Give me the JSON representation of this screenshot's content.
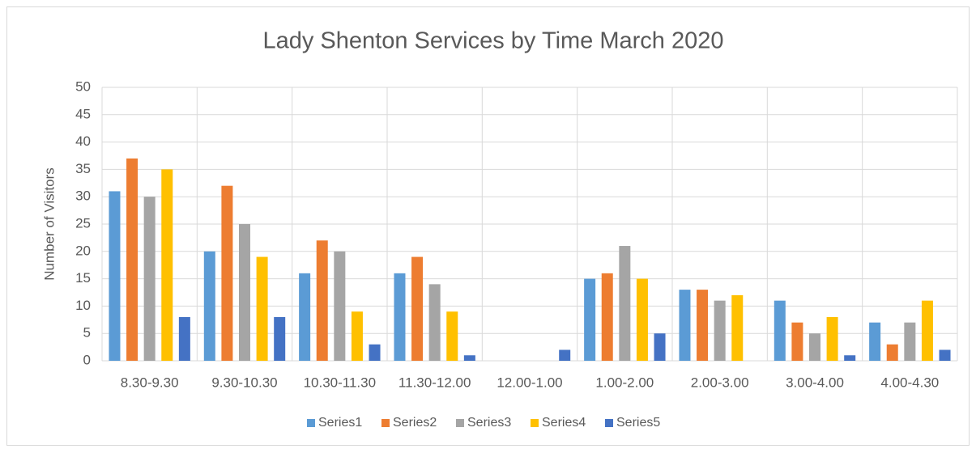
{
  "chart_data": {
    "type": "bar",
    "title": "Lady Shenton Services by Time March 2020",
    "y_label": "Number of Visitors",
    "categories": [
      "8.30-9.30",
      "9.30-10.30",
      "10.30-11.30",
      "11.30-12.00",
      "12.00-1.00",
      "1.00-2.00",
      "2.00-3.00",
      "3.00-4.00",
      "4.00-4.30"
    ],
    "series": [
      {
        "name": "Series1",
        "color": "#5b9bd5",
        "values": [
          31,
          20,
          16,
          16,
          0,
          15,
          13,
          11,
          7
        ]
      },
      {
        "name": "Series2",
        "color": "#ed7d31",
        "values": [
          37,
          32,
          22,
          19,
          0,
          16,
          13,
          7,
          3
        ]
      },
      {
        "name": "Series3",
        "color": "#a5a5a5",
        "values": [
          30,
          25,
          20,
          14,
          0,
          21,
          11,
          5,
          7
        ]
      },
      {
        "name": "Series4",
        "color": "#ffc000",
        "values": [
          35,
          19,
          9,
          9,
          0,
          15,
          12,
          8,
          11
        ]
      },
      {
        "name": "Series5",
        "color": "#4472c4",
        "values": [
          8,
          8,
          3,
          1,
          2,
          5,
          0,
          1,
          2
        ]
      }
    ],
    "ylim": [
      0,
      50
    ],
    "yticks": [
      0,
      5,
      10,
      15,
      20,
      25,
      30,
      35,
      40,
      45,
      50
    ],
    "grid": true,
    "legend": "bottom"
  }
}
